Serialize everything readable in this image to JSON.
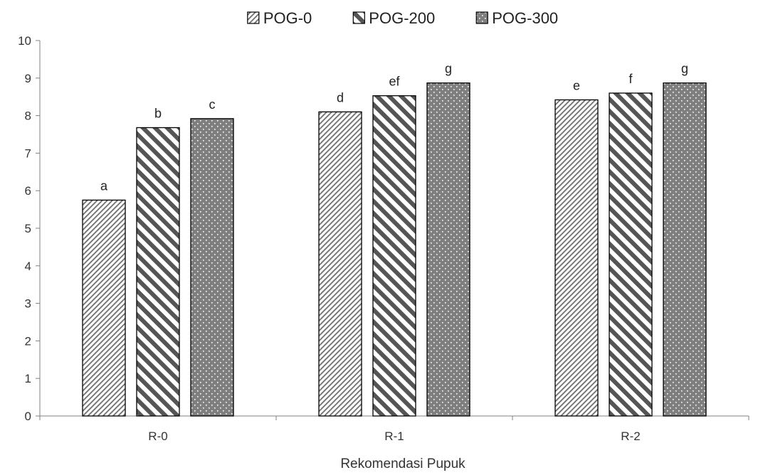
{
  "chart_data": {
    "type": "bar",
    "title": "",
    "xlabel": "Rekomendasi Pupuk",
    "ylabel": "",
    "categories": [
      "R-0",
      "R-1",
      "R-2"
    ],
    "ylim": [
      0,
      10
    ],
    "yticks": [
      0,
      1,
      2,
      3,
      4,
      5,
      6,
      7,
      8,
      9,
      10
    ],
    "grid": false,
    "legend_position": "top",
    "series": [
      {
        "name": "POG-0",
        "pattern": "fine-diagonal",
        "values": [
          5.75,
          8.1,
          8.42
        ],
        "labels": [
          "a",
          "d",
          "e"
        ]
      },
      {
        "name": "POG-200",
        "pattern": "wide-diagonal",
        "values": [
          7.68,
          8.53,
          8.6
        ],
        "labels": [
          "b",
          "ef",
          "f"
        ]
      },
      {
        "name": "POG-300",
        "pattern": "dots-on-gray",
        "values": [
          7.92,
          8.87,
          8.87
        ],
        "labels": [
          "c",
          "g",
          "g"
        ]
      }
    ],
    "colors": {
      "fill_dark": "#7f7f7f",
      "stroke": "#000000",
      "axis": "#808080"
    }
  }
}
